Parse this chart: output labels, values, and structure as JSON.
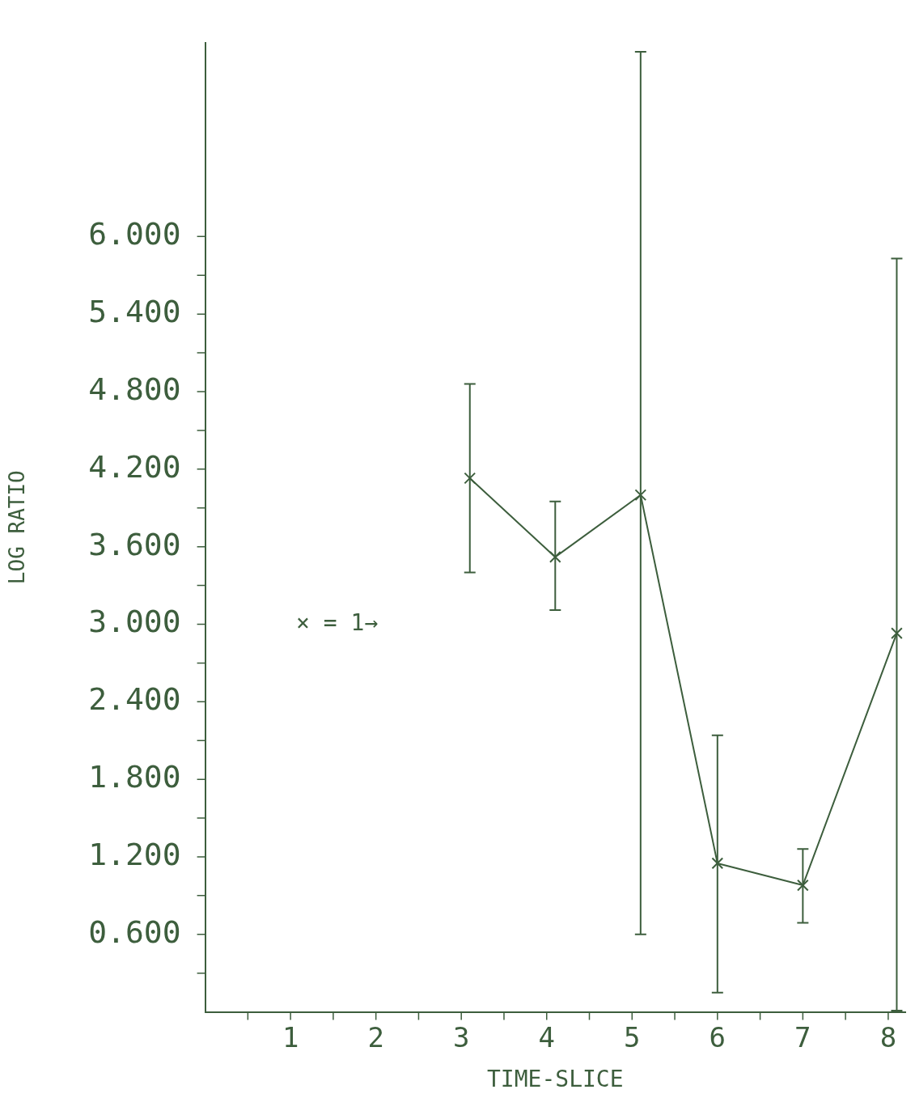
{
  "chart_data": {
    "type": "line",
    "xlabel": "TIME-SLICE",
    "ylabel": "LOG RATIO",
    "annotations": [
      "× = 1→"
    ],
    "x": [
      3.1,
      4.1,
      5.1,
      6.0,
      7.0,
      8.1
    ],
    "series": [
      {
        "color": "#3d5e3d",
        "values": [
          4.13,
          3.52,
          4.0,
          1.15,
          0.98,
          2.93
        ],
        "errors": [
          [
            3.4,
            4.86
          ],
          [
            3.11,
            3.95
          ],
          [
            0.6,
            7.43
          ],
          [
            0.15,
            2.14
          ],
          [
            0.69,
            1.26
          ],
          [
            0.01,
            5.83
          ]
        ]
      }
    ],
    "xlim": [
      0,
      8.2
    ],
    "ylim": [
      0,
      7.5
    ],
    "xticks": [
      {
        "value": 0.5,
        "label": null
      },
      1,
      {
        "value": 1.5,
        "label": null
      },
      2,
      {
        "value": 2.5,
        "label": null
      },
      3,
      {
        "value": 3.5,
        "label": null
      },
      4,
      {
        "value": 4.5,
        "label": null
      },
      5,
      {
        "value": 5.5,
        "label": null
      },
      6,
      {
        "value": 6.5,
        "label": null
      },
      7,
      {
        "value": 7.5,
        "label": null
      },
      8
    ],
    "yticks": [
      {
        "value": 0.3,
        "label": null
      },
      {
        "value": 0.6,
        "label": "0.600"
      },
      {
        "value": 0.9,
        "label": null
      },
      {
        "value": 1.2,
        "label": "1.200"
      },
      {
        "value": 1.5,
        "label": null
      },
      {
        "value": 1.8,
        "label": "1.800"
      },
      {
        "value": 2.1,
        "label": null
      },
      {
        "value": 2.4,
        "label": "2.400"
      },
      {
        "value": 2.7,
        "label": null
      },
      {
        "value": 3.0,
        "label": "3.000"
      },
      {
        "value": 3.3,
        "label": null
      },
      {
        "value": 3.6,
        "label": "3.600"
      },
      {
        "value": 3.9,
        "label": null
      },
      {
        "value": 4.2,
        "label": "4.200"
      },
      {
        "value": 4.5,
        "label": null
      },
      {
        "value": 4.8,
        "label": "4.800"
      },
      {
        "value": 5.1,
        "label": null
      },
      {
        "value": 5.4,
        "label": "5.400"
      },
      {
        "value": 5.7,
        "label": null
      },
      {
        "value": 6.0,
        "label": "6.000"
      }
    ],
    "grid": false,
    "legend": false,
    "marker": "cross",
    "line_style": "solid"
  }
}
